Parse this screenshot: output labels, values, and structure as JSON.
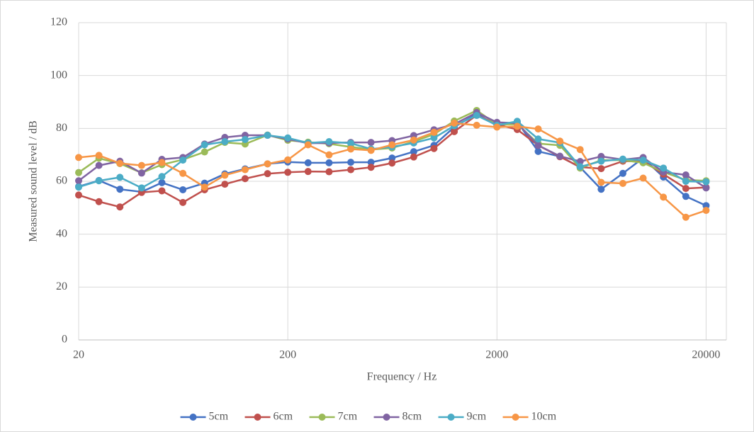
{
  "chart_data": {
    "type": "line",
    "x_label": "Frequency / Hz",
    "y_label": "Measured sound level / dB",
    "x": [
      20,
      25,
      31.5,
      40,
      50,
      63,
      80,
      100,
      125,
      160,
      200,
      250,
      315,
      400,
      500,
      630,
      800,
      1000,
      1250,
      1600,
      2000,
      2500,
      3150,
      4000,
      5000,
      6300,
      8000,
      10000,
      12500,
      16000,
      20000
    ],
    "x_log": true,
    "xlim": [
      20,
      25000
    ],
    "xticks": [
      20,
      200,
      2000,
      20000
    ],
    "ylim": [
      0,
      120
    ],
    "yticks": [
      0,
      20,
      40,
      60,
      80,
      100,
      120
    ],
    "grid": true,
    "legend": "bottom",
    "series": [
      {
        "name": "5cm",
        "color": "#4472c4",
        "values": [
          58,
          60.3,
          57,
          56,
          59.5,
          56.8,
          59.3,
          62.8,
          64.7,
          66.6,
          67.3,
          67,
          67,
          67.2,
          67.2,
          68.8,
          71.2,
          73.6,
          80.5,
          85.5,
          81,
          82.5,
          71.3,
          69.4,
          65.3,
          57,
          63,
          68.8,
          61.6,
          54.3,
          50.8
        ]
      },
      {
        "name": "6cm",
        "color": "#c0504d",
        "values": [
          54.8,
          52.3,
          50.3,
          55.8,
          56.4,
          52,
          56.8,
          58.9,
          61,
          62.9,
          63.4,
          63.7,
          63.6,
          64.4,
          65.3,
          66.9,
          69.2,
          72.4,
          78.8,
          85,
          81.5,
          79.6,
          73.6,
          69.3,
          65.4,
          64.8,
          67.6,
          67.6,
          62.7,
          57.3,
          57.7
        ]
      },
      {
        "name": "7cm",
        "color": "#9bbb59",
        "values": [
          63.3,
          68.7,
          66.7,
          63.2,
          66.3,
          68.2,
          71.1,
          74.7,
          74.1,
          77.5,
          75.5,
          74.8,
          74.2,
          73,
          72,
          72.6,
          75,
          77.8,
          82.8,
          86.8,
          81.5,
          81.6,
          74.3,
          73.6,
          65,
          68,
          68,
          67,
          63.5,
          60.5,
          60.2
        ]
      },
      {
        "name": "8cm",
        "color": "#8064a2",
        "values": [
          60.2,
          66,
          67.6,
          63.1,
          68.3,
          69,
          74.1,
          76.6,
          77.4,
          77.4,
          76,
          74.4,
          74.5,
          74.7,
          74.7,
          75.4,
          77.3,
          79.5,
          81.6,
          86,
          82.3,
          82,
          73.6,
          69.5,
          67.5,
          69.4,
          68.2,
          69,
          63.5,
          62.4,
          57.5
        ]
      },
      {
        "name": "9cm",
        "color": "#4bacc6",
        "values": [
          57.8,
          60.2,
          61.5,
          57.5,
          61.8,
          68,
          73.8,
          75,
          75.8,
          77.4,
          76.4,
          74.5,
          75,
          74.4,
          72.2,
          73,
          74.5,
          76.4,
          81,
          84.9,
          81.2,
          82.7,
          76,
          74.6,
          65.5,
          67.6,
          68.4,
          68,
          65,
          60,
          59.8
        ]
      },
      {
        "name": "10cm",
        "color": "#f79646",
        "values": [
          69,
          69.8,
          66.8,
          66,
          67.1,
          63,
          57.8,
          62.3,
          64.4,
          66.6,
          68.1,
          73.8,
          70,
          72.2,
          71.7,
          73.8,
          75.6,
          78.5,
          82,
          81.2,
          80.5,
          80.8,
          79.8,
          75.2,
          72,
          59.6,
          59.2,
          61.2,
          54,
          46.4,
          49
        ]
      }
    ]
  }
}
